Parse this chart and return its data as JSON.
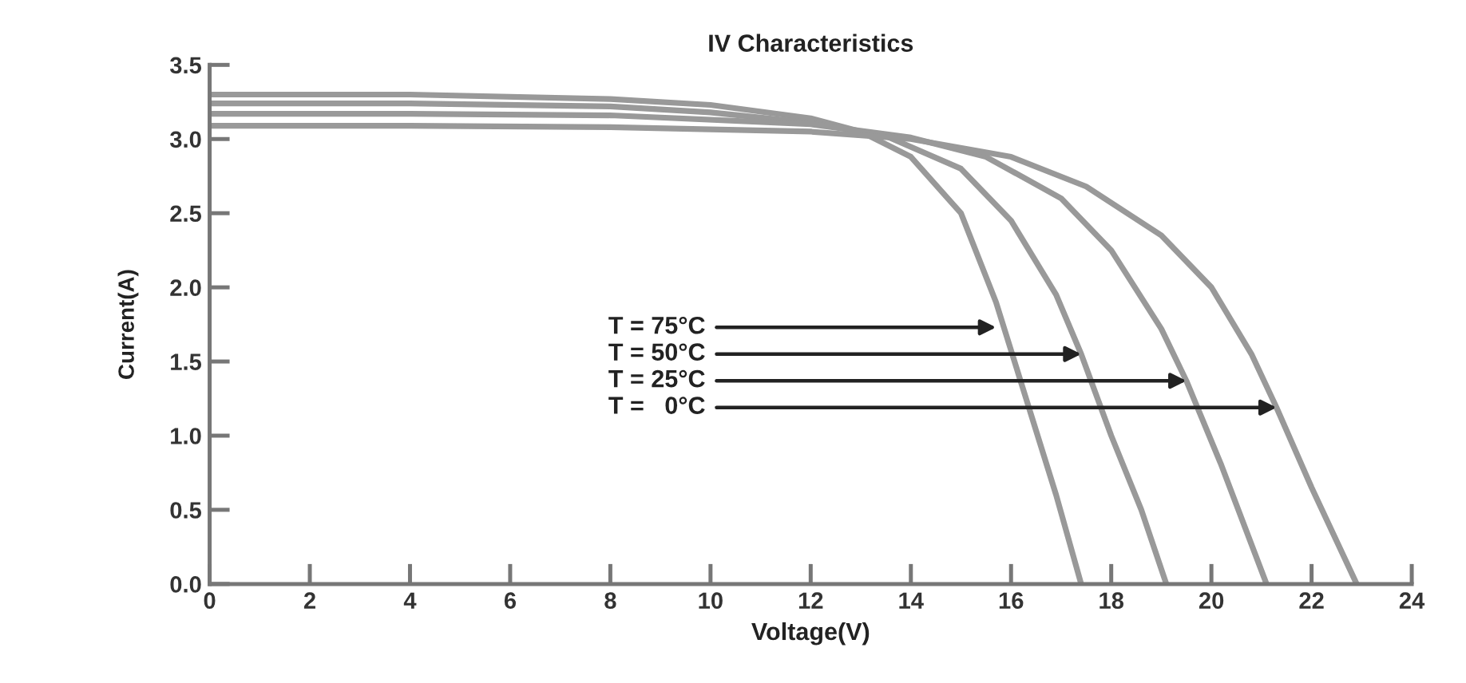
{
  "chart_data": {
    "type": "line",
    "title": "IV Characteristics",
    "xlabel": "Voltage(V)",
    "ylabel": "Current(A)",
    "xlim": [
      0,
      24
    ],
    "xticks": [
      0,
      2,
      4,
      6,
      8,
      10,
      12,
      14,
      16,
      18,
      20,
      22,
      24
    ],
    "ylim": [
      0,
      3.5
    ],
    "yticks": [
      {
        "value": 0,
        "label": "0.0"
      },
      0.5,
      {
        "value": 1,
        "label": "1.0"
      },
      1.5,
      {
        "value": 2,
        "label": "2.0"
      },
      2.5,
      {
        "value": 3,
        "label": "3.0"
      },
      3.5
    ],
    "grid": false,
    "legend": false,
    "marker": "none",
    "line_style": "solid",
    "series": [
      {
        "color": "#999999",
        "x": [
          0,
          4,
          8,
          10,
          12,
          13,
          14,
          15,
          15.7,
          16.3,
          16.9,
          17.4
        ],
        "values": [
          3.3,
          3.3,
          3.27,
          3.23,
          3.14,
          3.05,
          2.88,
          2.5,
          1.9,
          1.25,
          0.6,
          0
        ]
      },
      {
        "color": "#999999",
        "x": [
          0,
          4,
          8,
          10,
          12,
          13.5,
          15,
          16,
          16.9,
          17.4,
          18.0,
          18.6,
          19.1
        ],
        "values": [
          3.24,
          3.24,
          3.22,
          3.18,
          3.11,
          3.02,
          2.8,
          2.45,
          1.95,
          1.55,
          1.0,
          0.5,
          0
        ]
      },
      {
        "color": "#999999",
        "x": [
          0,
          4,
          8,
          12,
          14,
          15.5,
          17,
          18,
          19,
          19.5,
          20.2,
          21.1
        ],
        "values": [
          3.17,
          3.17,
          3.16,
          3.1,
          3.01,
          2.88,
          2.6,
          2.25,
          1.72,
          1.37,
          0.8,
          0
        ]
      },
      {
        "color": "#999999",
        "x": [
          0,
          4,
          8,
          12,
          14,
          16,
          17.5,
          19,
          20,
          20.8,
          21.3,
          22.0,
          22.9
        ],
        "values": [
          3.09,
          3.09,
          3.08,
          3.05,
          3.0,
          2.88,
          2.68,
          2.35,
          2.0,
          1.55,
          1.19,
          0.65,
          0
        ]
      }
    ],
    "annotations": [
      {
        "text": "T = 75°C",
        "x": 15.7,
        "y": 1.73
      },
      {
        "text": "T = 50°C",
        "x": 17.4,
        "y": 1.55
      },
      {
        "text": "T = 25°C",
        "x": 19.5,
        "y": 1.37
      },
      {
        "text": "T =   0°C",
        "x": 21.3,
        "y": 1.19
      }
    ]
  }
}
